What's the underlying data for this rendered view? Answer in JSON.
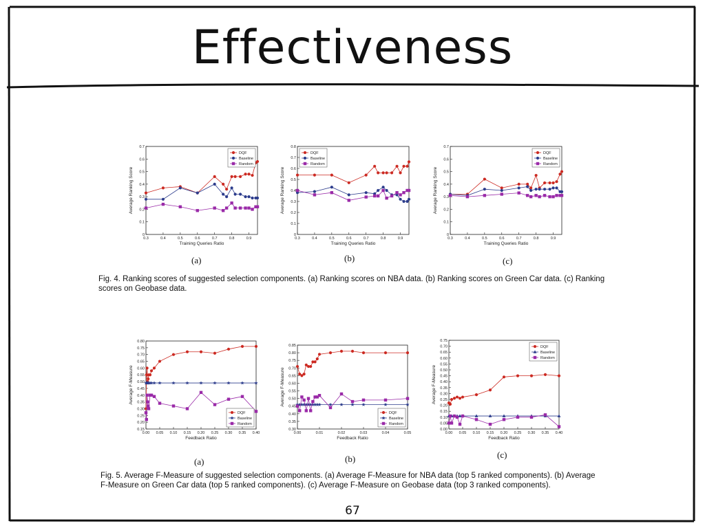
{
  "slide": {
    "title": "Effectiveness",
    "page_number": "67"
  },
  "colors": {
    "dqf": "#cc2a22",
    "baseline": "#2c3c8c",
    "random": "#9a2aa8"
  },
  "fig4": {
    "caption_line1": "Fig. 4. Ranking scores of suggested selection components. (a) Ranking scores on NBA data. (b) Ranking scores on Green Car data. (c) Ranking",
    "caption_line2": "scores on Geobase data.",
    "panel_labels": [
      "(a)",
      "(b)",
      "(c)"
    ]
  },
  "fig5": {
    "caption_line1": "Fig. 5. Average F-Measure of suggested selection components. (a) Average F-Measure for NBA data (top 5 ranked components). (b) Average",
    "caption_line2": "F-Measure on Green Car data (top 5 ranked components). (c) Average F-Measure on Geobase data (top 3 ranked components).",
    "panel_labels": [
      "(a)",
      "(b)",
      "(c)"
    ]
  },
  "chart_data": [
    {
      "type": "line",
      "title": "",
      "xlabel": "Training Queries Ratio",
      "ylabel": "Average Ranking Score",
      "xlim": [
        0.3,
        0.95
      ],
      "ylim": [
        0,
        0.7
      ],
      "xticks": [
        0.3,
        0.4,
        0.5,
        0.6,
        0.7,
        0.8,
        0.9
      ],
      "xtick_labels": [
        "0.3",
        "0.4",
        "0.5",
        "0.6",
        "0.7",
        "0.8",
        "0.9"
      ],
      "yticks": [
        0,
        0.1,
        0.2,
        0.3,
        0.4,
        0.5,
        0.6,
        0.7
      ],
      "ytick_labels": [
        "0",
        "0.1",
        "0.2",
        "0.3",
        "0.4",
        "0.5",
        "0.6",
        "0.7"
      ],
      "legend": "top-right",
      "series": [
        {
          "name": "DQF",
          "marker": "circle",
          "x": [
            0.3,
            0.4,
            0.5,
            0.6,
            0.7,
            0.75,
            0.77,
            0.8,
            0.82,
            0.85,
            0.88,
            0.9,
            0.92,
            0.94,
            0.95
          ],
          "y": [
            0.33,
            0.37,
            0.38,
            0.33,
            0.46,
            0.4,
            0.36,
            0.46,
            0.46,
            0.46,
            0.48,
            0.48,
            0.47,
            0.57,
            0.58
          ]
        },
        {
          "name": "Baseline",
          "marker": "circle",
          "x": [
            0.3,
            0.4,
            0.5,
            0.6,
            0.7,
            0.75,
            0.77,
            0.8,
            0.82,
            0.85,
            0.88,
            0.9,
            0.92,
            0.94,
            0.95
          ],
          "y": [
            0.28,
            0.28,
            0.37,
            0.33,
            0.4,
            0.32,
            0.3,
            0.37,
            0.32,
            0.32,
            0.3,
            0.3,
            0.29,
            0.29,
            0.29
          ]
        },
        {
          "name": "Random",
          "marker": "square",
          "x": [
            0.3,
            0.4,
            0.5,
            0.6,
            0.7,
            0.75,
            0.77,
            0.8,
            0.82,
            0.85,
            0.88,
            0.9,
            0.92,
            0.94,
            0.95
          ],
          "y": [
            0.21,
            0.24,
            0.22,
            0.19,
            0.21,
            0.19,
            0.21,
            0.25,
            0.21,
            0.21,
            0.21,
            0.21,
            0.2,
            0.22,
            0.22
          ]
        }
      ]
    },
    {
      "type": "line",
      "title": "",
      "xlabel": "Training Queries Ratio",
      "ylabel": "Average Ranking Score",
      "xlim": [
        0.3,
        0.95
      ],
      "ylim": [
        0,
        0.8
      ],
      "xticks": [
        0.3,
        0.4,
        0.5,
        0.6,
        0.7,
        0.8,
        0.9
      ],
      "xtick_labels": [
        "0.3",
        "0.4",
        "0.5",
        "0.6",
        "0.7",
        "0.8",
        "0.9"
      ],
      "yticks": [
        0,
        0.1,
        0.2,
        0.3,
        0.4,
        0.5,
        0.6,
        0.7,
        0.8
      ],
      "ytick_labels": [
        "0",
        "0.1",
        "0.2",
        "0.3",
        "0.4",
        "0.5",
        "0.6",
        "0.7",
        "0.8"
      ],
      "legend": "top-left",
      "series": [
        {
          "name": "DQF",
          "marker": "circle",
          "x": [
            0.3,
            0.4,
            0.5,
            0.6,
            0.7,
            0.75,
            0.77,
            0.8,
            0.82,
            0.85,
            0.88,
            0.9,
            0.92,
            0.94,
            0.95
          ],
          "y": [
            0.54,
            0.54,
            0.54,
            0.47,
            0.54,
            0.62,
            0.56,
            0.56,
            0.56,
            0.56,
            0.62,
            0.56,
            0.62,
            0.62,
            0.66
          ]
        },
        {
          "name": "Baseline",
          "marker": "circle",
          "x": [
            0.3,
            0.4,
            0.5,
            0.6,
            0.7,
            0.75,
            0.77,
            0.8,
            0.82,
            0.85,
            0.88,
            0.9,
            0.92,
            0.94,
            0.95
          ],
          "y": [
            0.38,
            0.39,
            0.43,
            0.36,
            0.38,
            0.37,
            0.4,
            0.43,
            0.4,
            0.36,
            0.36,
            0.32,
            0.3,
            0.3,
            0.32
          ]
        },
        {
          "name": "Random",
          "marker": "square",
          "x": [
            0.3,
            0.4,
            0.5,
            0.6,
            0.7,
            0.75,
            0.77,
            0.8,
            0.82,
            0.85,
            0.88,
            0.9,
            0.92,
            0.94,
            0.95
          ],
          "y": [
            0.4,
            0.36,
            0.38,
            0.31,
            0.34,
            0.35,
            0.35,
            0.4,
            0.33,
            0.35,
            0.38,
            0.36,
            0.38,
            0.4,
            0.4
          ]
        }
      ]
    },
    {
      "type": "line",
      "title": "",
      "xlabel": "Training Queries Ratio",
      "ylabel": "Average Ranking Score",
      "xlim": [
        0.3,
        0.95
      ],
      "ylim": [
        0,
        0.7
      ],
      "xticks": [
        0.3,
        0.4,
        0.5,
        0.6,
        0.7,
        0.8,
        0.9
      ],
      "xtick_labels": [
        "0.3",
        "0.4",
        "0.5",
        "0.6",
        "0.7",
        "0.8",
        "0.9"
      ],
      "yticks": [
        0,
        0.1,
        0.2,
        0.3,
        0.4,
        0.5,
        0.6,
        0.7
      ],
      "ytick_labels": [
        "0",
        "0.1",
        "0.2",
        "0.3",
        "0.4",
        "0.5",
        "0.6",
        "0.7"
      ],
      "legend": "top-right",
      "series": [
        {
          "name": "DQF",
          "marker": "circle",
          "x": [
            0.3,
            0.4,
            0.5,
            0.6,
            0.7,
            0.75,
            0.77,
            0.8,
            0.82,
            0.85,
            0.88,
            0.9,
            0.92,
            0.94,
            0.95
          ],
          "y": [
            0.32,
            0.32,
            0.44,
            0.37,
            0.4,
            0.4,
            0.37,
            0.47,
            0.37,
            0.41,
            0.41,
            0.41,
            0.42,
            0.48,
            0.5
          ]
        },
        {
          "name": "Baseline",
          "marker": "circle",
          "x": [
            0.3,
            0.4,
            0.5,
            0.6,
            0.7,
            0.75,
            0.77,
            0.8,
            0.82,
            0.85,
            0.88,
            0.9,
            0.92,
            0.94,
            0.95
          ],
          "y": [
            0.32,
            0.31,
            0.36,
            0.35,
            0.37,
            0.38,
            0.35,
            0.36,
            0.36,
            0.36,
            0.36,
            0.37,
            0.37,
            0.34,
            0.34
          ]
        },
        {
          "name": "Random",
          "marker": "square",
          "x": [
            0.3,
            0.4,
            0.5,
            0.6,
            0.7,
            0.75,
            0.77,
            0.8,
            0.82,
            0.85,
            0.88,
            0.9,
            0.92,
            0.94,
            0.95
          ],
          "y": [
            0.31,
            0.3,
            0.31,
            0.32,
            0.33,
            0.31,
            0.3,
            0.31,
            0.3,
            0.31,
            0.3,
            0.3,
            0.31,
            0.31,
            0.31
          ]
        }
      ]
    },
    {
      "type": "line",
      "title": "",
      "xlabel": "Feedback Ratio",
      "ylabel": "Average F-Measure",
      "xlim": [
        0,
        0.4
      ],
      "ylim": [
        0.15,
        0.8
      ],
      "xticks": [
        0,
        0.05,
        0.1,
        0.15,
        0.2,
        0.25,
        0.3,
        0.35,
        0.4
      ],
      "xtick_labels": [
        "0.00",
        "0.05",
        "0.10",
        "0.15",
        "0.20",
        "0.25",
        "0.30",
        "0.35",
        "0.40"
      ],
      "yticks": [
        0.15,
        0.2,
        0.25,
        0.3,
        0.35,
        0.4,
        0.45,
        0.5,
        0.55,
        0.6,
        0.65,
        0.7,
        0.75,
        0.8
      ],
      "ytick_labels": [
        "0.15",
        "0.20",
        "0.25",
        "0.30",
        "0.35",
        "0.40",
        "0.45",
        "0.50",
        "0.55",
        "0.60",
        "0.65",
        "0.70",
        "0.75",
        "0.80"
      ],
      "legend": "bottom-right",
      "series": [
        {
          "name": "DQF",
          "marker": "circle",
          "x": [
            0,
            0.002,
            0.004,
            0.006,
            0.008,
            0.01,
            0.015,
            0.02,
            0.03,
            0.05,
            0.1,
            0.15,
            0.2,
            0.25,
            0.3,
            0.35,
            0.4
          ],
          "y": [
            0.3,
            0.55,
            0.6,
            0.5,
            0.52,
            0.55,
            0.55,
            0.58,
            0.6,
            0.65,
            0.7,
            0.72,
            0.72,
            0.71,
            0.74,
            0.76,
            0.76
          ]
        },
        {
          "name": "Baseline",
          "marker": "star",
          "x": [
            0,
            0.002,
            0.004,
            0.006,
            0.008,
            0.01,
            0.015,
            0.02,
            0.03,
            0.05,
            0.1,
            0.15,
            0.2,
            0.25,
            0.3,
            0.35,
            0.4
          ],
          "y": [
            0.49,
            0.49,
            0.49,
            0.49,
            0.49,
            0.49,
            0.49,
            0.49,
            0.49,
            0.49,
            0.49,
            0.49,
            0.49,
            0.49,
            0.49,
            0.49,
            0.49
          ]
        },
        {
          "name": "Random",
          "marker": "square",
          "x": [
            0,
            0.002,
            0.004,
            0.006,
            0.008,
            0.01,
            0.015,
            0.02,
            0.03,
            0.05,
            0.1,
            0.15,
            0.2,
            0.25,
            0.3,
            0.35,
            0.4
          ],
          "y": [
            0.27,
            0.22,
            0.4,
            0.35,
            0.32,
            0.3,
            0.4,
            0.4,
            0.39,
            0.34,
            0.32,
            0.3,
            0.42,
            0.33,
            0.37,
            0.39,
            0.28
          ]
        }
      ]
    },
    {
      "type": "line",
      "title": "",
      "xlabel": "Feedback Ratio",
      "ylabel": "Average F-Measure",
      "xlim": [
        0,
        0.05
      ],
      "ylim": [
        0.3,
        0.85
      ],
      "xticks": [
        0,
        0.01,
        0.02,
        0.03,
        0.04,
        0.05
      ],
      "xtick_labels": [
        "0.00",
        "0.01",
        "0.02",
        "0.03",
        "0.04",
        "0.05"
      ],
      "yticks": [
        0.3,
        0.35,
        0.4,
        0.45,
        0.5,
        0.55,
        0.6,
        0.65,
        0.7,
        0.75,
        0.8,
        0.85
      ],
      "ytick_labels": [
        "0.30",
        "0.35",
        "0.40",
        "0.45",
        "0.50",
        "0.55",
        "0.60",
        "0.65",
        "0.70",
        "0.75",
        "0.80",
        "0.85"
      ],
      "legend": "bottom-right",
      "series": [
        {
          "name": "DQF",
          "marker": "circle",
          "x": [
            0,
            0.001,
            0.002,
            0.003,
            0.004,
            0.005,
            0.006,
            0.007,
            0.008,
            0.009,
            0.01,
            0.015,
            0.02,
            0.025,
            0.03,
            0.04,
            0.05
          ],
          "y": [
            0.71,
            0.66,
            0.65,
            0.66,
            0.72,
            0.71,
            0.71,
            0.74,
            0.74,
            0.76,
            0.79,
            0.8,
            0.81,
            0.81,
            0.8,
            0.8,
            0.8
          ]
        },
        {
          "name": "Baseline",
          "marker": "star",
          "x": [
            0,
            0.001,
            0.002,
            0.003,
            0.004,
            0.005,
            0.006,
            0.007,
            0.008,
            0.009,
            0.01,
            0.015,
            0.02,
            0.025,
            0.03,
            0.04,
            0.05
          ],
          "y": [
            0.46,
            0.46,
            0.46,
            0.46,
            0.46,
            0.46,
            0.46,
            0.46,
            0.46,
            0.46,
            0.46,
            0.46,
            0.46,
            0.46,
            0.46,
            0.46,
            0.46
          ]
        },
        {
          "name": "Random",
          "marker": "square",
          "x": [
            0,
            0.001,
            0.002,
            0.003,
            0.004,
            0.005,
            0.006,
            0.007,
            0.008,
            0.009,
            0.01,
            0.015,
            0.02,
            0.025,
            0.03,
            0.04,
            0.05
          ],
          "y": [
            0.45,
            0.42,
            0.51,
            0.49,
            0.42,
            0.5,
            0.42,
            0.48,
            0.51,
            0.51,
            0.52,
            0.44,
            0.53,
            0.48,
            0.49,
            0.49,
            0.5
          ]
        }
      ]
    },
    {
      "type": "line",
      "title": "",
      "xlabel": "Feedback Ratio",
      "ylabel": "Average F-Measure",
      "xlim": [
        0,
        0.4
      ],
      "ylim": [
        0,
        0.75
      ],
      "xticks": [
        0,
        0.05,
        0.1,
        0.15,
        0.2,
        0.25,
        0.3,
        0.35,
        0.4
      ],
      "xtick_labels": [
        "0.00",
        "0.05",
        "0.10",
        "0.15",
        "0.20",
        "0.25",
        "0.30",
        "0.35",
        "0.40"
      ],
      "yticks": [
        0,
        0.05,
        0.1,
        0.15,
        0.2,
        0.25,
        0.3,
        0.35,
        0.4,
        0.45,
        0.5,
        0.55,
        0.6,
        0.65,
        0.7,
        0.75
      ],
      "ytick_labels": [
        "0.00",
        "0.05",
        "0.10",
        "0.15",
        "0.20",
        "0.25",
        "0.30",
        "0.35",
        "0.40",
        "0.45",
        "0.50",
        "0.55",
        "0.60",
        "0.65",
        "0.70",
        "0.75"
      ],
      "legend": "top-right",
      "series": [
        {
          "name": "DQF",
          "marker": "circle",
          "x": [
            0,
            0.005,
            0.01,
            0.02,
            0.03,
            0.04,
            0.05,
            0.1,
            0.15,
            0.2,
            0.25,
            0.3,
            0.35,
            0.4
          ],
          "y": [
            0.22,
            0.21,
            0.25,
            0.26,
            0.27,
            0.26,
            0.27,
            0.29,
            0.33,
            0.44,
            0.45,
            0.45,
            0.46,
            0.45
          ]
        },
        {
          "name": "Baseline",
          "marker": "triangle",
          "x": [
            0,
            0.005,
            0.01,
            0.02,
            0.03,
            0.04,
            0.05,
            0.1,
            0.15,
            0.2,
            0.25,
            0.3,
            0.35,
            0.4
          ],
          "y": [
            0.11,
            0.11,
            0.11,
            0.11,
            0.11,
            0.11,
            0.11,
            0.11,
            0.11,
            0.11,
            0.11,
            0.11,
            0.11,
            0.11
          ]
        },
        {
          "name": "Random",
          "marker": "square",
          "x": [
            0,
            0.005,
            0.01,
            0.02,
            0.03,
            0.04,
            0.05,
            0.1,
            0.15,
            0.2,
            0.25,
            0.3,
            0.35,
            0.4
          ],
          "y": [
            0.05,
            0.11,
            0.05,
            0.11,
            0.1,
            0.04,
            0.11,
            0.08,
            0.04,
            0.08,
            0.1,
            0.1,
            0.12,
            0.02
          ]
        }
      ]
    }
  ]
}
